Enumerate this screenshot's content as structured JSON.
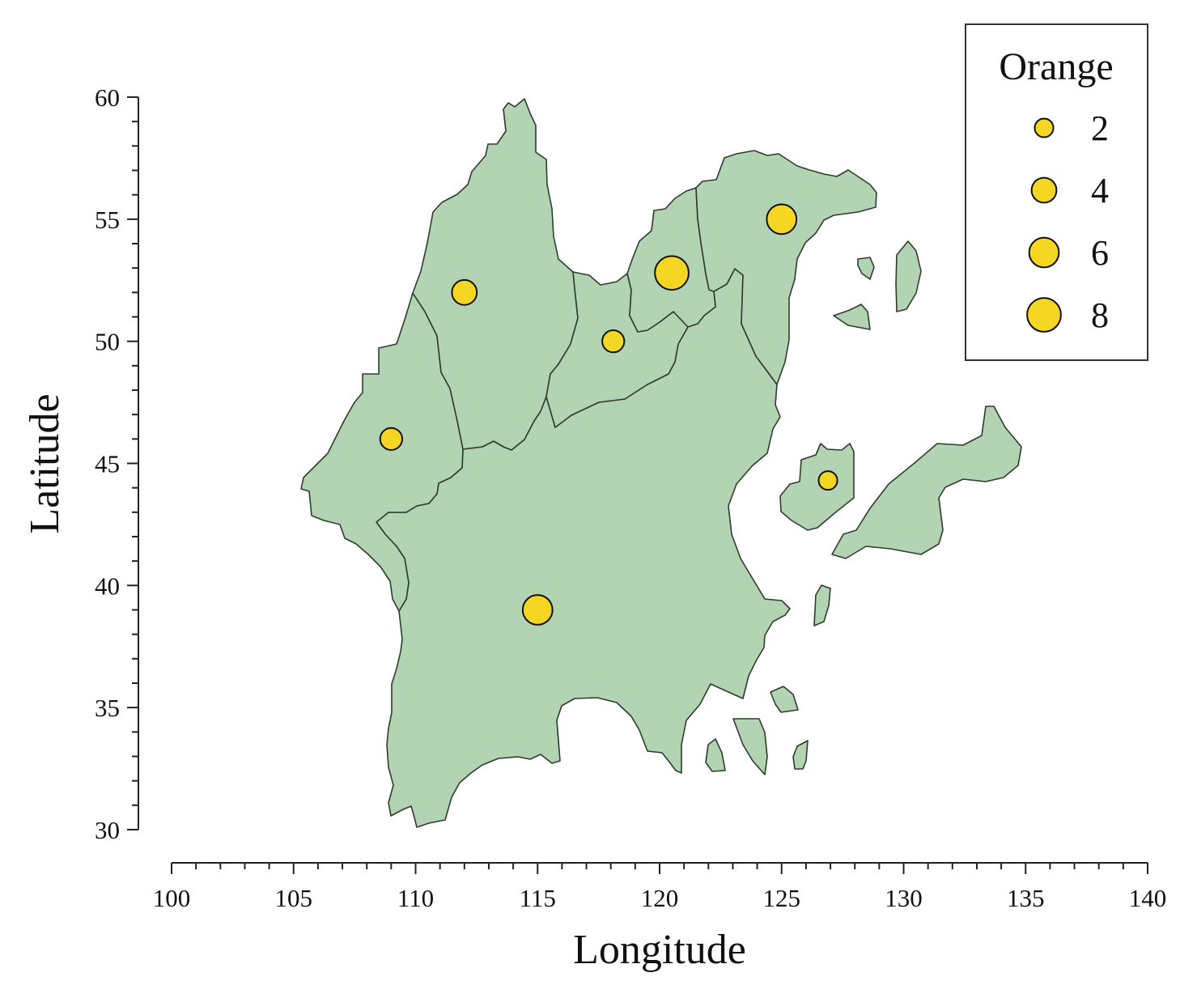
{
  "chart_data": {
    "type": "scatter",
    "xlabel": "Longitude",
    "ylabel": "Latitude",
    "xlim": [
      100,
      140
    ],
    "ylim": [
      30,
      60
    ],
    "x_ticks": [
      100,
      105,
      110,
      115,
      120,
      125,
      130,
      135,
      140
    ],
    "y_ticks": [
      30,
      35,
      40,
      45,
      50,
      55,
      60
    ],
    "legend": {
      "title": "Orange",
      "placement": "top-right",
      "sizes": [
        2,
        4,
        6,
        8
      ]
    },
    "colors": {
      "land": "#b2d4b2",
      "border": "#2f3b2f",
      "bubble": "#f5d623"
    },
    "points": [
      {
        "lon": 112.0,
        "lat": 52.0,
        "value": 4
      },
      {
        "lon": 109.0,
        "lat": 46.0,
        "value": 3
      },
      {
        "lon": 118.1,
        "lat": 50.0,
        "value": 3
      },
      {
        "lon": 120.5,
        "lat": 52.8,
        "value": 8
      },
      {
        "lon": 125.0,
        "lat": 55.0,
        "value": 6
      },
      {
        "lon": 115.0,
        "lat": 39.0,
        "value": 6
      },
      {
        "lon": 126.9,
        "lat": 44.3,
        "value": 2
      }
    ]
  }
}
